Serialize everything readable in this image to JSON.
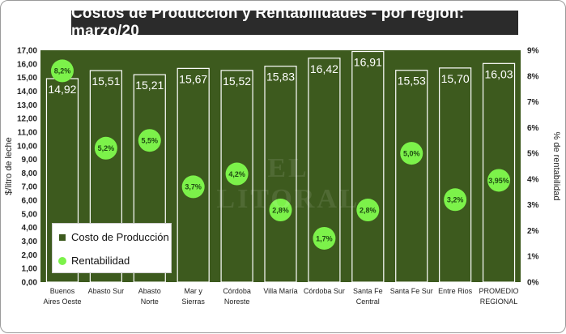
{
  "title": "Costos de Producción  y Rentabilidades - por región: marzo/20",
  "watermark": "EL LITORAL",
  "chart_data": {
    "type": "bar",
    "categories": [
      [
        "Buenos",
        "Aires Oeste"
      ],
      [
        "Abasto Sur"
      ],
      [
        "Abasto",
        "Norte"
      ],
      [
        "Mar y",
        "Sierras"
      ],
      [
        "Córdoba",
        "Noreste"
      ],
      [
        "Villa María"
      ],
      [
        "Córdoba Sur"
      ],
      [
        "Santa Fe",
        "Central"
      ],
      [
        "Santa Fe Sur"
      ],
      [
        "Entre Rios"
      ],
      [
        "PROMEDIO",
        "REGIONAL"
      ]
    ],
    "series": [
      {
        "name": "Costo de Producción",
        "type": "bar",
        "axis": "left",
        "values": [
          14.92,
          15.51,
          15.21,
          15.67,
          15.52,
          15.83,
          16.42,
          16.91,
          15.53,
          15.7,
          16.03
        ],
        "labels": [
          "14,92",
          "15,51",
          "15,21",
          "15,67",
          "15,52",
          "15,83",
          "16,42",
          "16,91",
          "15,53",
          "15,70",
          "16,03"
        ],
        "color": "#3d5a1e"
      },
      {
        "name": "Rentabilidad",
        "type": "scatter",
        "axis": "right",
        "values": [
          8.2,
          5.2,
          5.5,
          3.7,
          4.2,
          2.8,
          1.7,
          2.8,
          5.0,
          3.2,
          3.95
        ],
        "labels": [
          "8,2%",
          "5,2%",
          "5,5%",
          "3,7%",
          "4,2%",
          "2,8%",
          "1,7%",
          "2,8%",
          "5,0%",
          "3,2%",
          "3,95%"
        ],
        "color": "#7cf24a"
      }
    ],
    "ylabel": "$/litro de leche",
    "y2label": "% de rentabilidad",
    "ylim": [
      0,
      17
    ],
    "y2lim": [
      0,
      9
    ],
    "yticks": [
      "0,00",
      "1,00",
      "2,00",
      "3,00",
      "4,00",
      "5,00",
      "6,00",
      "7,00",
      "8,00",
      "9,00",
      "10,00",
      "11,00",
      "12,00",
      "13,00",
      "14,00",
      "15,00",
      "16,00",
      "17,00"
    ],
    "y2ticks": [
      "0%",
      "1%",
      "2%",
      "3%",
      "4%",
      "5%",
      "6%",
      "7%",
      "8%",
      "9%"
    ],
    "plot_background": "#3d5a1e",
    "grid": false,
    "legend_position": "bottom-left"
  }
}
